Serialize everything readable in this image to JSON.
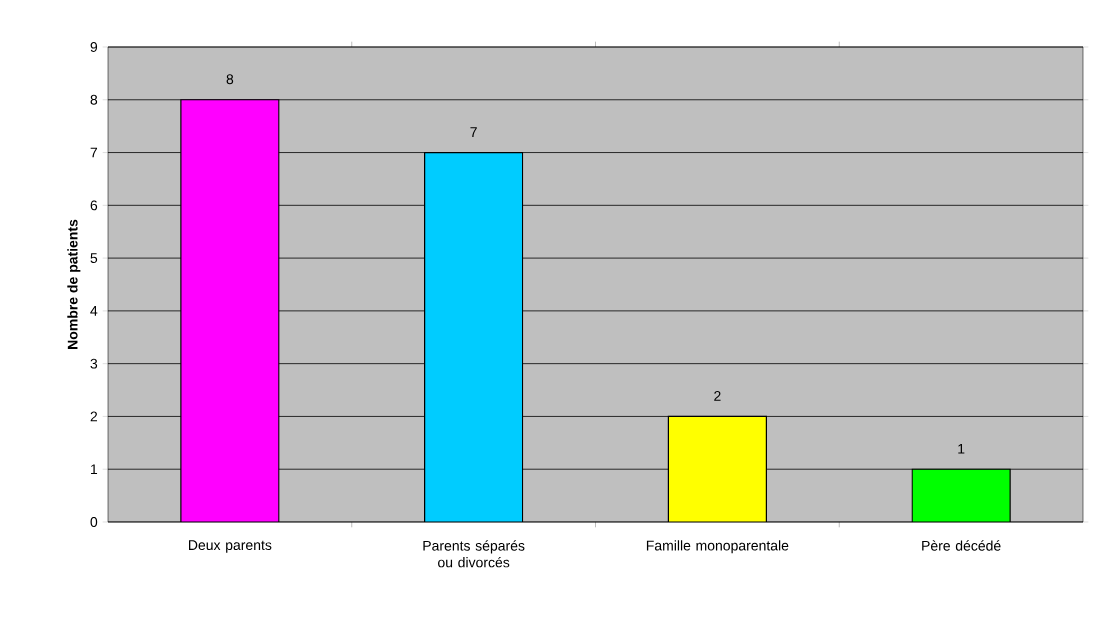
{
  "chart_data": {
    "type": "bar",
    "ylabel": "Nombre de patients",
    "categories": [
      "Deux parents",
      "Parents séparés ou divorcés",
      "Famille monoparentale",
      "Père décédé"
    ],
    "values": [
      8,
      7,
      2,
      1
    ],
    "colors": [
      "#ff00ff",
      "#00ccff",
      "#ffff00",
      "#00ff00"
    ],
    "ylim": [
      0,
      9
    ],
    "yticks": [
      0,
      1,
      2,
      3,
      4,
      5,
      6,
      7,
      8,
      9
    ],
    "grid": "y",
    "data_labels": true
  }
}
